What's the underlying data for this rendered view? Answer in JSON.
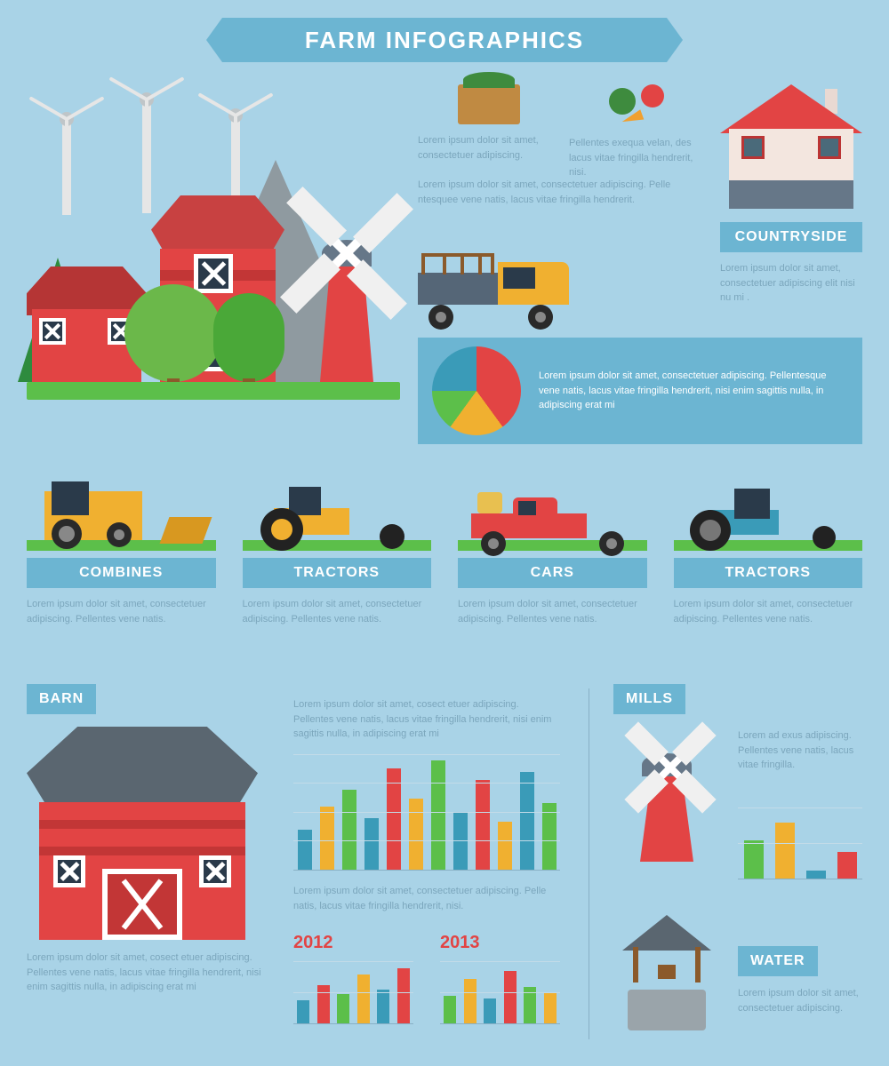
{
  "title": "FARM INFOGRAPHICS",
  "colors": {
    "background": "#a9d3e7",
    "panel": "#6cb5d2",
    "text_white": "#ffffff",
    "text_muted": "#7ba6bc",
    "red": "#e24444",
    "red_dark": "#c23636",
    "yellow": "#f0b030",
    "green": "#5cbf4a",
    "teal": "#3a9bb8",
    "grey": "#5a6670"
  },
  "crate": {
    "text": "Lorem ipsum dolor sit amet, consectetuer adipiscing."
  },
  "veg": {
    "text": "Pellentes exequa velan, des lacus vitae fringilla hendrerit, nisi."
  },
  "para1": "Lorem ipsum dolor sit amet, consectetuer adipiscing. Pelle ntesquee vene natis, lacus vitae fringilla hendrerit.",
  "countryside": {
    "label": "COUNTRYSIDE",
    "text": "Lorem ipsum dolor sit amet, consectetuer adipiscing elit nisi nu mi ."
  },
  "pie": {
    "text": "Lorem ipsum dolor sit amet, consectetuer adipiscing. Pellentesque vene natis, lacus vitae fringilla hendrerit, nisi enim sagittis nulla, in adipiscing erat mi",
    "slices": [
      {
        "value": 40,
        "color": "#e24444"
      },
      {
        "value": 20,
        "color": "#f0b030"
      },
      {
        "value": 15,
        "color": "#5cbf4a"
      },
      {
        "value": 25,
        "color": "#3a9bb8"
      }
    ]
  },
  "vehicles": [
    {
      "key": "combines",
      "label": "COMBINES",
      "text": "Lorem ipsum dolor sit amet, consectetuer adipiscing. Pellentes vene natis."
    },
    {
      "key": "tractors1",
      "label": "TRACTORS",
      "text": "Lorem ipsum dolor sit amet, consectetuer adipiscing. Pellentes vene natis."
    },
    {
      "key": "cars",
      "label": "CARS",
      "text": "Lorem ipsum dolor sit amet, consectetuer adipiscing. Pellentes vene natis."
    },
    {
      "key": "tractors2",
      "label": "TRACTORS",
      "text": "Lorem ipsum dolor sit amet, consectetuer adipiscing. Pellentes vene natis."
    }
  ],
  "barn": {
    "label": "BARN",
    "text": "Lorem ipsum dolor sit amet, cosect etuer adipiscing. Pellentes vene natis, lacus vitae fringilla hendrerit, nisi enim sagittis nulla, in adipiscing erat mi"
  },
  "chart_text1": "Lorem ipsum dolor sit amet, cosect etuer adipiscing. Pellentes vene natis, lacus vitae fringilla hendrerit, nisi enim sagittis nulla, in adipiscing erat mi",
  "chart_main": {
    "ymax": 100,
    "grid_lines": [
      25,
      50,
      75,
      100
    ],
    "bars": [
      {
        "v": 35,
        "c": "#3a9bb8"
      },
      {
        "v": 55,
        "c": "#f0b030"
      },
      {
        "v": 70,
        "c": "#5cbf4a"
      },
      {
        "v": 45,
        "c": "#3a9bb8"
      },
      {
        "v": 88,
        "c": "#e24444"
      },
      {
        "v": 62,
        "c": "#f0b030"
      },
      {
        "v": 95,
        "c": "#5cbf4a"
      },
      {
        "v": 50,
        "c": "#3a9bb8"
      },
      {
        "v": 78,
        "c": "#e24444"
      },
      {
        "v": 42,
        "c": "#f0b030"
      },
      {
        "v": 85,
        "c": "#3a9bb8"
      },
      {
        "v": 58,
        "c": "#5cbf4a"
      }
    ]
  },
  "chart_text2": "Lorem ipsum dolor sit amet, consectetuer adipiscing. Pelle natis, lacus vitae fringilla hendrerit, nisi.",
  "years": [
    {
      "year": "2012",
      "bars": [
        {
          "v": 38,
          "c": "#3a9bb8"
        },
        {
          "v": 62,
          "c": "#e24444"
        },
        {
          "v": 48,
          "c": "#5cbf4a"
        },
        {
          "v": 80,
          "c": "#f0b030"
        },
        {
          "v": 55,
          "c": "#3a9bb8"
        },
        {
          "v": 90,
          "c": "#e24444"
        }
      ]
    },
    {
      "year": "2013",
      "bars": [
        {
          "v": 45,
          "c": "#5cbf4a"
        },
        {
          "v": 72,
          "c": "#f0b030"
        },
        {
          "v": 40,
          "c": "#3a9bb8"
        },
        {
          "v": 85,
          "c": "#e24444"
        },
        {
          "v": 60,
          "c": "#5cbf4a"
        },
        {
          "v": 50,
          "c": "#f0b030"
        }
      ]
    }
  ],
  "mills": {
    "label": "MILLS",
    "text": "Lorem ad exus adipiscing. Pellentes vene natis, lacus vitae fringilla.",
    "bars": [
      {
        "v": 55,
        "c": "#5cbf4a"
      },
      {
        "v": 80,
        "c": "#f0b030"
      },
      {
        "v": 12,
        "c": "#3a9bb8"
      },
      {
        "v": 38,
        "c": "#e24444"
      }
    ]
  },
  "water": {
    "label": "WATER",
    "text": "Lorem ipsum dolor sit amet, consectetuer adipiscing."
  }
}
